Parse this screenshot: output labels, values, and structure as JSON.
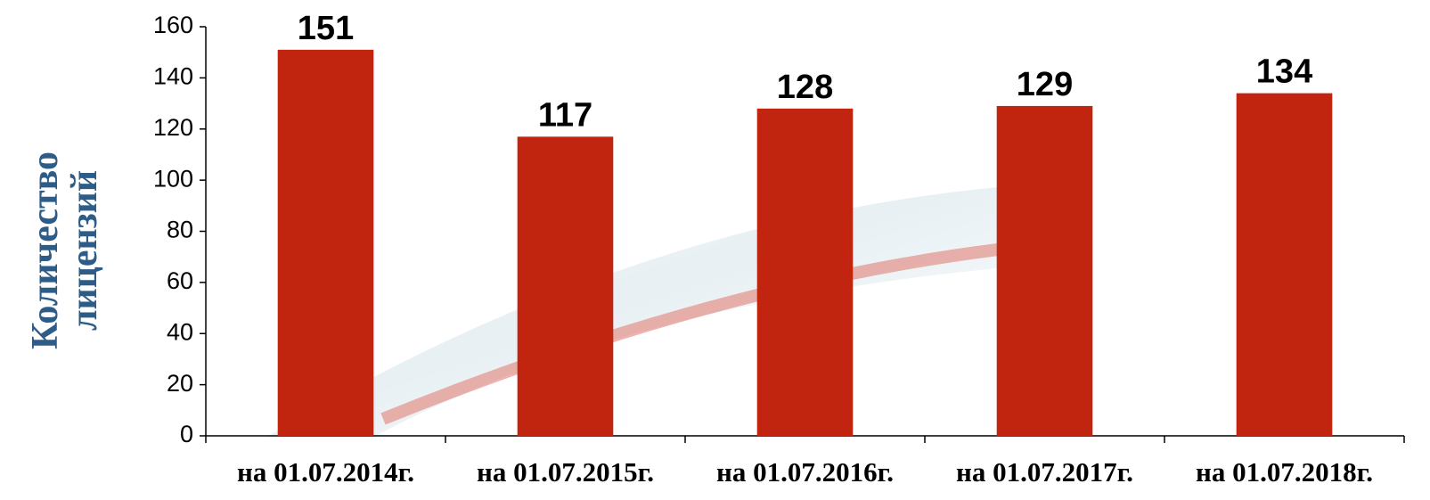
{
  "chart_data": {
    "type": "bar",
    "ylabel": "Количество лицензий",
    "categories": [
      "на 01.07.2014г.",
      "на 01.07.2015г.",
      "на 01.07.2016г.",
      "на 01.07.2017г.",
      "на 01.07.2018г."
    ],
    "values": [
      151,
      117,
      128,
      129,
      134
    ],
    "color": "#c1250f",
    "ylim": [
      0,
      160
    ],
    "yticks": [
      0,
      20,
      40,
      60,
      80,
      100,
      120,
      140,
      160
    ]
  }
}
